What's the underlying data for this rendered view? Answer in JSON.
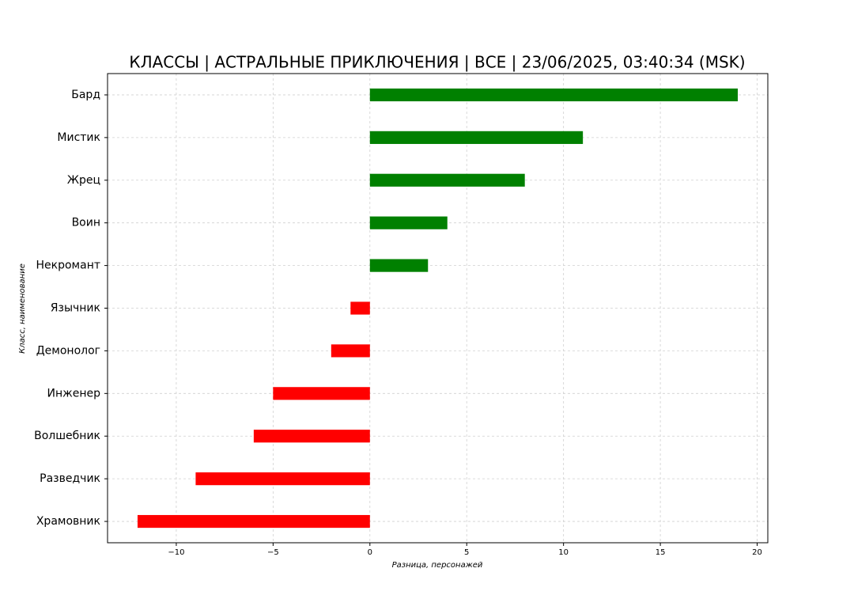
{
  "chart_data": {
    "type": "barh",
    "title": "КЛАССЫ | АСТРАЛЬНЫЕ ПРИКЛЮЧЕНИЯ | ВСЕ | 23/06/2025, 03:40:34 (MSK)",
    "x_label": "Разница, персонажей",
    "y_label": "Класс, наименование",
    "categories": [
      "Бард",
      "Мистик",
      "Жрец",
      "Воин",
      "Некромант",
      "Язычник",
      "Демонолог",
      "Инженер",
      "Волшебник",
      "Разведчик",
      "Храмовник"
    ],
    "values": [
      19,
      11,
      8,
      4,
      3,
      -1,
      -2,
      -5,
      -6,
      -9,
      -12
    ],
    "colors": [
      "#008000",
      "#008000",
      "#008000",
      "#008000",
      "#008000",
      "#ff0000",
      "#ff0000",
      "#ff0000",
      "#ff0000",
      "#ff0000",
      "#ff0000"
    ],
    "xlim": [
      -13.55,
      20.55
    ],
    "xticks": [
      {
        "value": -10,
        "label": "−10"
      },
      {
        "value": -5,
        "label": "−5"
      },
      0,
      5,
      10,
      15,
      20
    ],
    "grid": true
  }
}
